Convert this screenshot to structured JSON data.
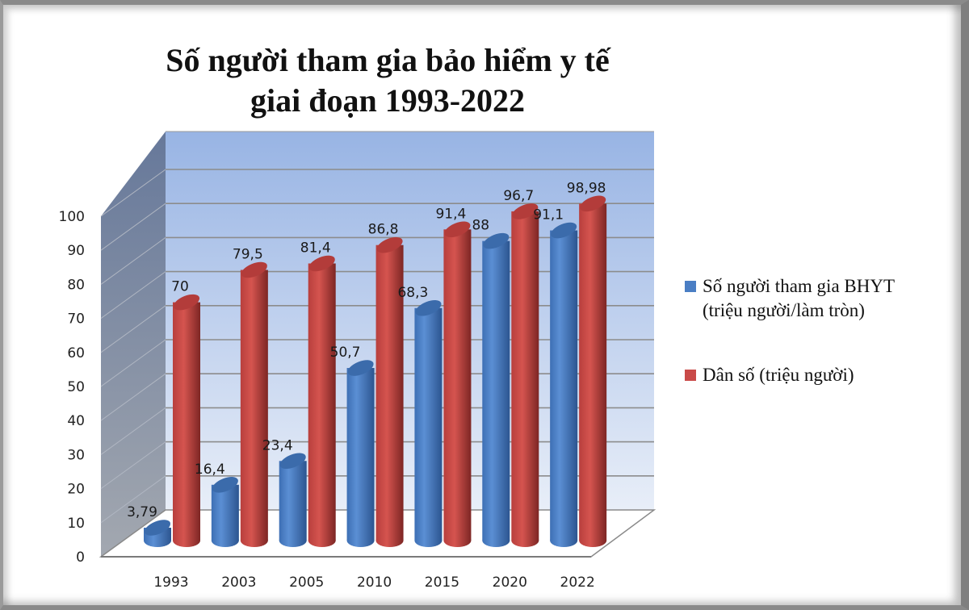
{
  "title_line1": "Số người tham gia bảo hiểm y tế",
  "title_line2": "giai đoạn 1993-2022",
  "legend": {
    "series1_line1": "Số người tham gia BHYT",
    "series1_line2": "(triệu người/làm tròn)",
    "series2": "Dân số (triệu người)"
  },
  "colors": {
    "series1": "#4a7ec4",
    "series2": "#c94a48",
    "back_wall_top": "#9cb7e6",
    "back_wall_bottom": "#e6edf7",
    "side_wall": "#6d7f9c"
  },
  "chart_data": {
    "type": "bar",
    "style": "3d-cylinder-clustered",
    "title": "Số người tham gia bảo hiểm y tế giai đoạn 1993-2022",
    "categories": [
      "1993",
      "2003",
      "2005",
      "2010",
      "2015",
      "2020",
      "2022"
    ],
    "series": [
      {
        "name": "Số người tham gia BHYT (triệu người/làm tròn)",
        "values": [
          3.79,
          16.4,
          23.4,
          50.7,
          68.3,
          88,
          91.1
        ],
        "labels": [
          "3,79",
          "16,4",
          "23,4",
          "50,7",
          "68,3",
          "88",
          "91,1"
        ]
      },
      {
        "name": "Dân số (triệu người)",
        "values": [
          70,
          79.5,
          81.4,
          86.8,
          91.4,
          96.7,
          98.98
        ],
        "labels": [
          "70",
          "79,5",
          "81,4",
          "86,8",
          "91,4",
          "96,7",
          "98,98"
        ]
      }
    ],
    "yticks": [
      "0",
      "10",
      "20",
      "30",
      "40",
      "50",
      "60",
      "70",
      "80",
      "90",
      "100"
    ],
    "ylim": [
      0,
      100
    ],
    "xlabel": "",
    "ylabel": "",
    "grid": true,
    "legend_position": "right"
  }
}
